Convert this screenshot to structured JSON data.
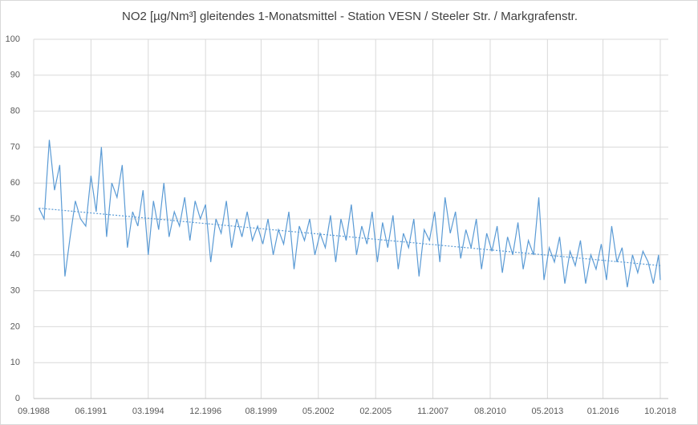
{
  "chart_data": {
    "type": "line",
    "title": "NO2 [µg/Nm³] gleitendes 1-Monatsmittel -  Station VESN / Steeler Str. / Markgrafenstr.",
    "x": [
      "12.1988",
      "03.1989",
      "06.1989",
      "09.1989",
      "12.1989",
      "03.1990",
      "06.1990",
      "09.1990",
      "12.1990",
      "03.1991",
      "06.1991",
      "09.1991",
      "12.1991",
      "03.1992",
      "06.1992",
      "09.1992",
      "12.1992",
      "03.1993",
      "06.1993",
      "09.1993",
      "12.1993",
      "03.1994",
      "06.1994",
      "09.1994",
      "12.1994",
      "03.1995",
      "06.1995",
      "09.1995",
      "12.1995",
      "03.1996",
      "06.1996",
      "09.1996",
      "12.1996",
      "03.1997",
      "06.1997",
      "09.1997",
      "12.1997",
      "03.1998",
      "06.1998",
      "09.1998",
      "12.1998",
      "03.1999",
      "06.1999",
      "09.1999",
      "12.1999",
      "03.2000",
      "06.2000",
      "09.2000",
      "12.2000",
      "03.2001",
      "06.2001",
      "09.2001",
      "12.2001",
      "03.2002",
      "06.2002",
      "09.2002",
      "12.2002",
      "03.2003",
      "06.2003",
      "09.2003",
      "12.2003",
      "03.2004",
      "06.2004",
      "09.2004",
      "12.2004",
      "03.2005",
      "06.2005",
      "09.2005",
      "12.2005",
      "03.2006",
      "06.2006",
      "09.2006",
      "12.2006",
      "03.2007",
      "06.2007",
      "09.2007",
      "12.2007",
      "03.2008",
      "06.2008",
      "09.2008",
      "12.2008",
      "03.2009",
      "06.2009",
      "09.2009",
      "12.2009",
      "03.2010",
      "06.2010",
      "09.2010",
      "12.2010",
      "03.2011",
      "06.2011",
      "09.2011",
      "12.2011",
      "03.2012",
      "06.2012",
      "09.2012",
      "12.2012",
      "03.2013",
      "06.2013",
      "09.2013",
      "12.2013",
      "03.2014",
      "06.2014",
      "09.2014",
      "12.2014",
      "03.2015",
      "06.2015",
      "09.2015",
      "12.2015",
      "03.2016",
      "06.2016",
      "09.2016",
      "12.2016",
      "03.2017",
      "06.2017",
      "09.2017",
      "12.2017",
      "03.2018",
      "06.2018",
      "09.2018",
      "10.2018"
    ],
    "series": [
      {
        "color": "#5b9bd5",
        "values": [
          53,
          50,
          72,
          58,
          65,
          34,
          45,
          55,
          50,
          48,
          62,
          52,
          70,
          45,
          60,
          56,
          65,
          42,
          52,
          48,
          58,
          40,
          55,
          47,
          60,
          45,
          52,
          48,
          56,
          44,
          55,
          50,
          54,
          38,
          50,
          46,
          55,
          42,
          50,
          45,
          52,
          44,
          48,
          43,
          50,
          40,
          47,
          43,
          52,
          36,
          48,
          44,
          50,
          40,
          46,
          42,
          51,
          38,
          50,
          44,
          54,
          40,
          48,
          43,
          52,
          38,
          49,
          42,
          51,
          36,
          46,
          42,
          50,
          34,
          47,
          44,
          52,
          38,
          56,
          46,
          52,
          39,
          47,
          42,
          50,
          36,
          46,
          41,
          48,
          35,
          45,
          40,
          49,
          36,
          44,
          40,
          56,
          33,
          42,
          38,
          45,
          32,
          41,
          37,
          44,
          32,
          40,
          36,
          43,
          33,
          48,
          38,
          42,
          31,
          40,
          35,
          41,
          38,
          32,
          40,
          33
        ]
      }
    ],
    "trendline": {
      "x": [
        "12.1988",
        "10.2018"
      ],
      "values": [
        53,
        37
      ]
    },
    "xlim": [
      "09.1988",
      "10.2018"
    ],
    "xticks": [
      "09.1988",
      "06.1991",
      "03.1994",
      "12.1996",
      "08.1999",
      "05.2002",
      "02.2005",
      "11.2007",
      "08.2010",
      "05.2013",
      "01.2016",
      "10.2018"
    ],
    "ylim": [
      0,
      100
    ],
    "yticks": [
      0,
      10,
      20,
      30,
      40,
      50,
      60,
      70,
      80,
      90,
      100
    ],
    "grid": true
  }
}
